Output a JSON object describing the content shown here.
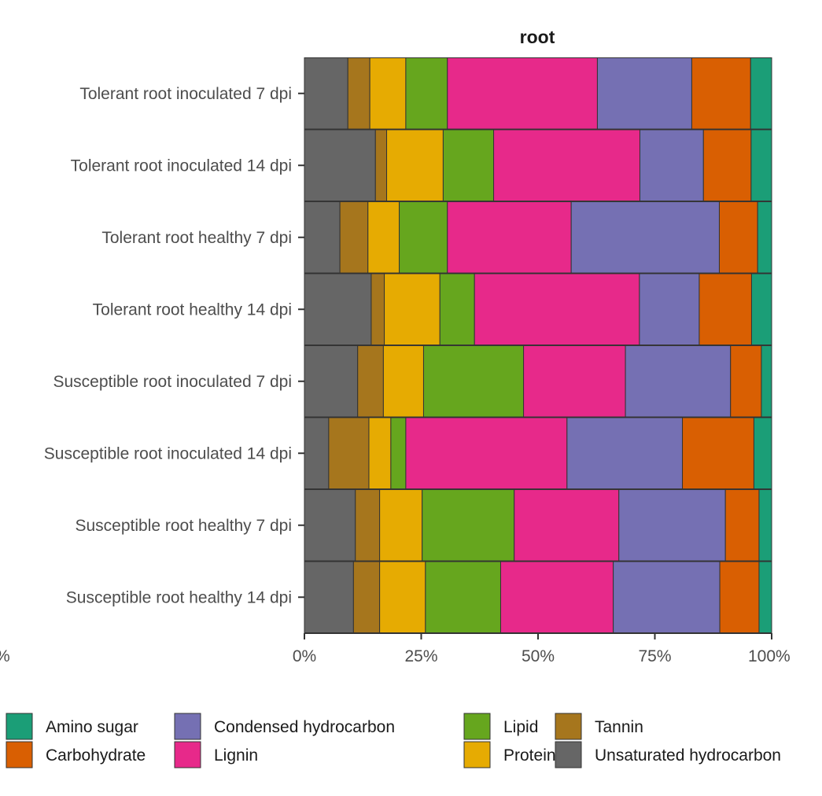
{
  "chart_data": {
    "type": "bar",
    "orientation": "horizontal",
    "stacked": true,
    "title": "root",
    "xlabel": "",
    "ylabel": "",
    "xlim": [
      0,
      100
    ],
    "x_ticks": [
      "0%",
      "25%",
      "50%",
      "75%",
      "100%"
    ],
    "clipped_fragments": {
      "left": "%",
      "right": "100%"
    },
    "grid": false,
    "legend_position": "bottom",
    "categories": [
      "Tolerant root inoculated 7 dpi",
      "Tolerant root inoculated 14 dpi",
      "Tolerant root healthy 7 dpi",
      "Tolerant root healthy 14 dpi",
      "Susceptible root inoculated 7 dpi",
      "Susceptible root inoculated 14 dpi",
      "Susceptible root healthy 7 dpi",
      "Susceptible root healthy 14 dpi"
    ],
    "stack_order": [
      "Unsaturated hydrocarbon",
      "Tannin",
      "Protein",
      "Lipid",
      "Lignin",
      "Condensed hydrocarbon",
      "Carbohydrate",
      "Amino sugar"
    ],
    "legend_order": [
      "Amino sugar",
      "Carbohydrate",
      "Condensed hydrocarbon",
      "Lignin",
      "Lipid",
      "Protein",
      "Tannin",
      "Unsaturated hydrocarbon"
    ],
    "series": [
      {
        "name": "Unsaturated hydrocarbon",
        "color": "#666666",
        "values": [
          9.3,
          15.2,
          7.6,
          14.3,
          11.4,
          5.2,
          10.9,
          10.5
        ]
      },
      {
        "name": "Tannin",
        "color": "#a6761d",
        "values": [
          4.7,
          2.4,
          6.0,
          2.8,
          5.5,
          8.6,
          5.2,
          5.6
        ]
      },
      {
        "name": "Protein",
        "color": "#e6ab02",
        "values": [
          7.7,
          12.1,
          6.7,
          11.9,
          8.6,
          4.7,
          9.1,
          9.8
        ]
      },
      {
        "name": "Lipid",
        "color": "#66a61e",
        "values": [
          8.9,
          10.8,
          10.3,
          7.4,
          21.4,
          3.2,
          19.7,
          16.1
        ]
      },
      {
        "name": "Lignin",
        "color": "#e7298a",
        "values": [
          32.1,
          31.3,
          26.5,
          35.3,
          21.8,
          34.5,
          22.4,
          24.1
        ]
      },
      {
        "name": "Condensed hydrocarbon",
        "color": "#7570b3",
        "values": [
          20.2,
          13.6,
          31.7,
          12.8,
          22.5,
          24.7,
          22.8,
          22.8
        ]
      },
      {
        "name": "Carbohydrate",
        "color": "#d95f02",
        "values": [
          12.6,
          10.2,
          8.2,
          11.2,
          6.6,
          15.3,
          7.2,
          8.4
        ]
      },
      {
        "name": "Amino sugar",
        "color": "#1b9e77",
        "values": [
          4.5,
          4.4,
          3.0,
          4.3,
          2.2,
          3.8,
          2.7,
          2.7
        ]
      }
    ]
  }
}
